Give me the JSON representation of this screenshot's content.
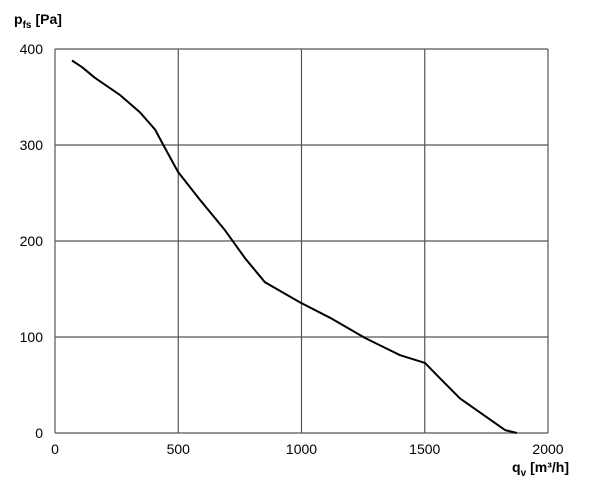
{
  "chart_data": {
    "type": "line",
    "ylabel": {
      "symbol": "p",
      "subscript": "fs",
      "unit": "[Pa]"
    },
    "xlabel": {
      "symbol": "q",
      "subscript": "v",
      "unit": "[m³/h]"
    },
    "x": [
      69,
      110,
      162,
      264,
      345,
      406,
      446,
      499,
      588,
      690,
      771,
      852,
      994,
      1116,
      1258,
      1400,
      1501,
      1562,
      1643,
      1765,
      1826,
      1874
    ],
    "series": [
      {
        "color": "#000000",
        "values": [
          388,
          381,
          370,
          352,
          334,
          316,
          297,
          272,
          243,
          211,
          182,
          157,
          136,
          120,
          99,
          81,
          73,
          57,
          36,
          14,
          3,
          0
        ]
      }
    ],
    "xlim": [
      0,
      2000
    ],
    "xticks": [
      0,
      500,
      1000,
      1500,
      2000
    ],
    "ylim": [
      0,
      400
    ],
    "yticks": [
      0,
      100,
      200,
      300,
      400
    ],
    "grid": true
  }
}
